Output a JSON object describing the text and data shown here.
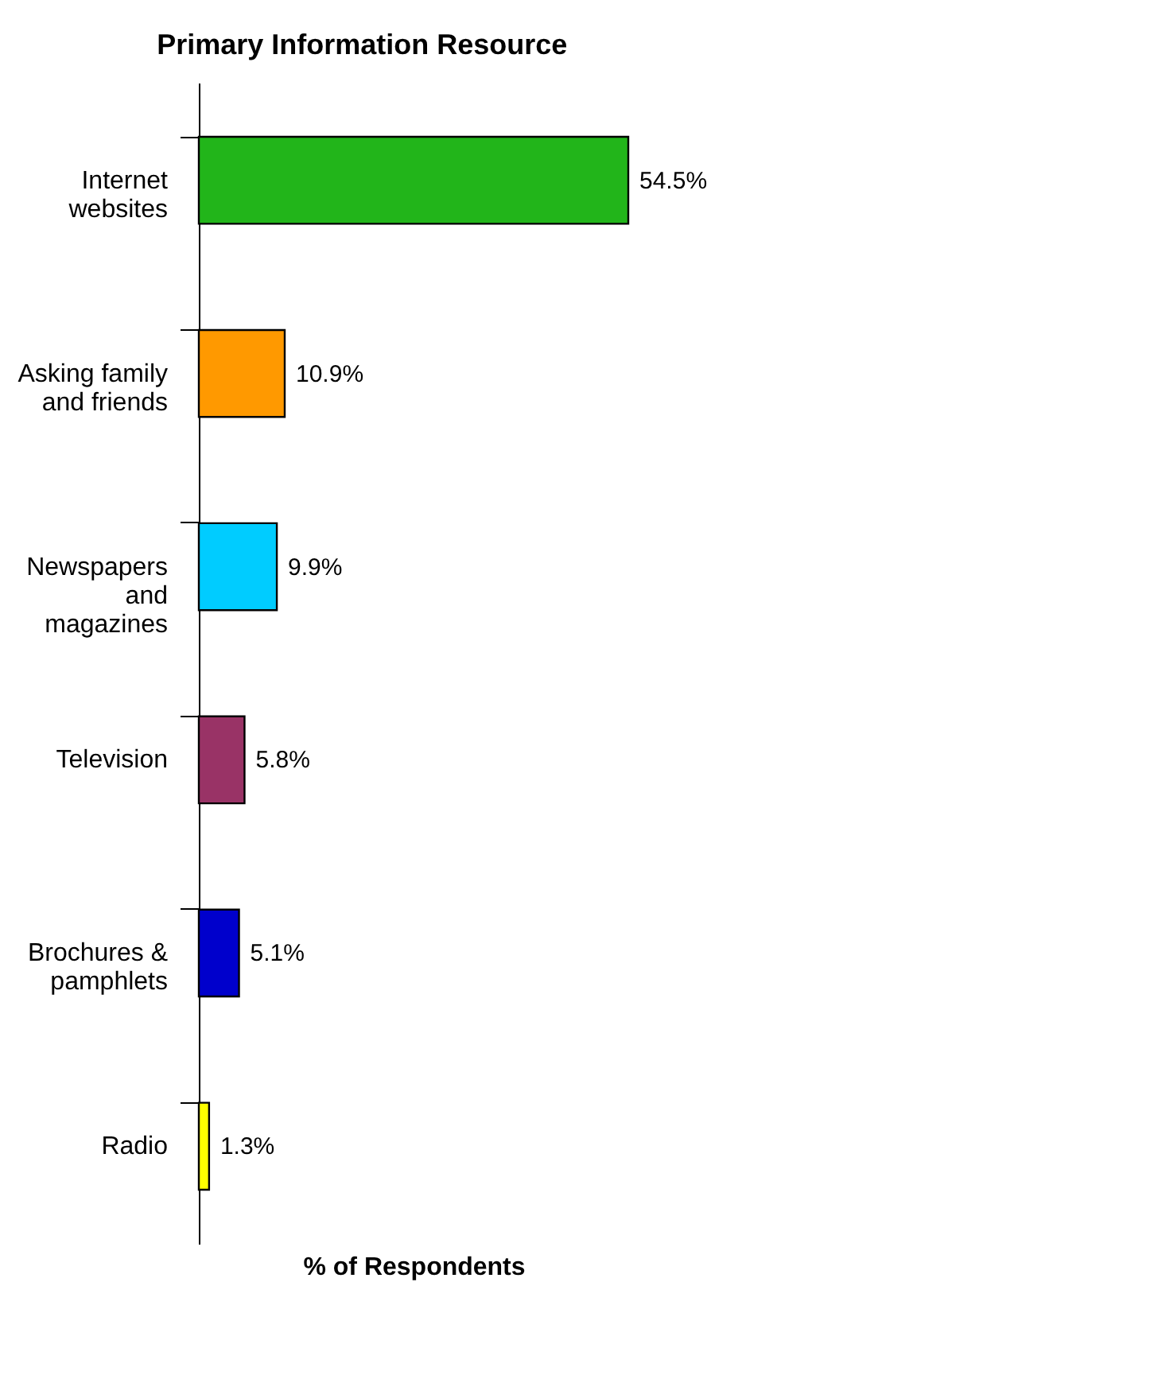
{
  "chart_data": {
    "type": "bar",
    "orientation": "horizontal",
    "title": "Primary Information Resource",
    "xlabel": "% of Respondents",
    "categories": [
      "Internet\nwebsites",
      "Asking family\nand friends",
      "Newspapers\nand\nmagazines",
      "Television",
      "Brochures &\npamphlets",
      "Radio"
    ],
    "values": [
      54.5,
      10.9,
      9.9,
      5.8,
      5.1,
      1.3
    ],
    "colors": [
      "#22b51a",
      "#ff9900",
      "#00ccff",
      "#993366",
      "#0000cc",
      "#ffff00"
    ],
    "value_labels": [
      "54.5%",
      "10.9%",
      "9.9%",
      "5.8%",
      "5.1%",
      "1.3%"
    ],
    "tick_labels": "y"
  }
}
